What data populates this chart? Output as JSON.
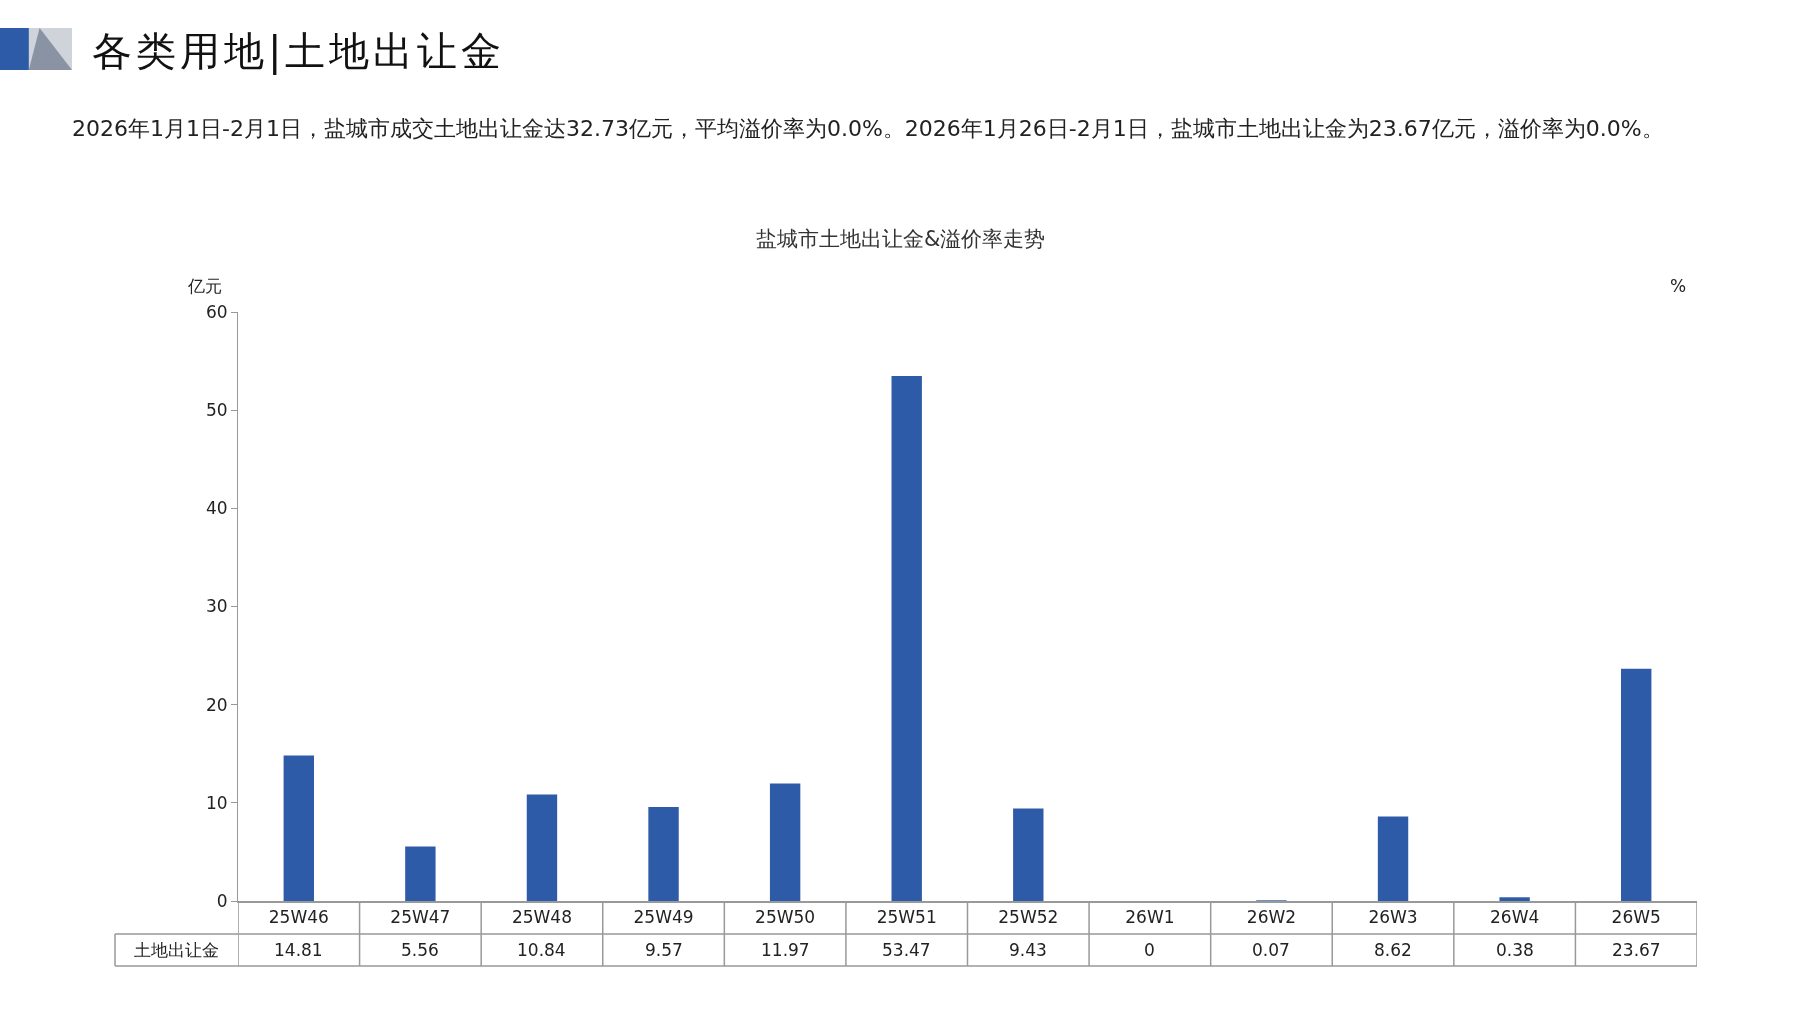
{
  "chart_data": {
    "type": "bar",
    "title": "盐城市土地出让金&溢价率走势",
    "subtitle": "2026年1月1日-2月1日，盐城市成交土地出让金达32.73亿元，平均溢价率为0.0%。2026年1月26日-2月1日，盐城市土地出让金为23.67亿元，溢价率为0.0%。",
    "annotations": [
      "各类用地|土地出让金"
    ],
    "ylabel": "亿元",
    "y2label": "%",
    "categories": [
      "25W46",
      "25W47",
      "25W48",
      "25W49",
      "25W50",
      "25W51",
      "25W52",
      "26W1",
      "26W2",
      "26W3",
      "26W4",
      "26W5"
    ],
    "series": [
      {
        "name": "土地出让金",
        "color": "#2e5ba8",
        "values": [
          14.81,
          5.56,
          10.84,
          9.57,
          11.97,
          53.47,
          9.43,
          0,
          0.07,
          8.62,
          0.38,
          23.67
        ]
      }
    ],
    "ylim": [
      0,
      60
    ],
    "yticks": [
      0,
      10,
      20,
      30,
      40,
      50,
      60
    ],
    "grid": false,
    "legend": false,
    "data_labels": true
  }
}
